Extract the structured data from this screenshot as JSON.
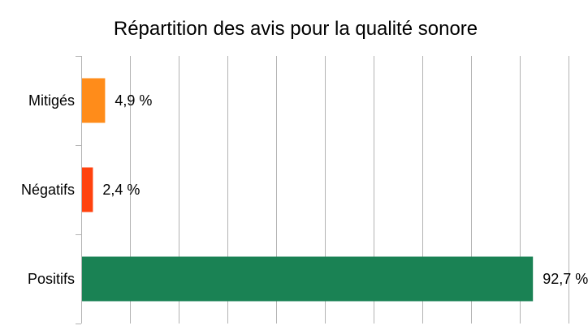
{
  "chart_data": {
    "type": "bar",
    "orientation": "horizontal",
    "title": "Répartition des avis pour la qualité sonore",
    "categories": [
      "Mitigés",
      "Négatifs",
      "Positifs"
    ],
    "values": [
      4.9,
      2.4,
      92.7
    ],
    "data_labels": [
      "4,9 %",
      "2,4 %",
      "92,7 %"
    ],
    "colors": [
      "#ff8c1a",
      "#ff420e",
      "#1a8254"
    ],
    "xlim": [
      0,
      100
    ],
    "x_gridlines": [
      0,
      10,
      20,
      30,
      40,
      50,
      60,
      70,
      80,
      90,
      100
    ],
    "grid": true,
    "legend": "none",
    "xlabel": "",
    "ylabel": ""
  }
}
